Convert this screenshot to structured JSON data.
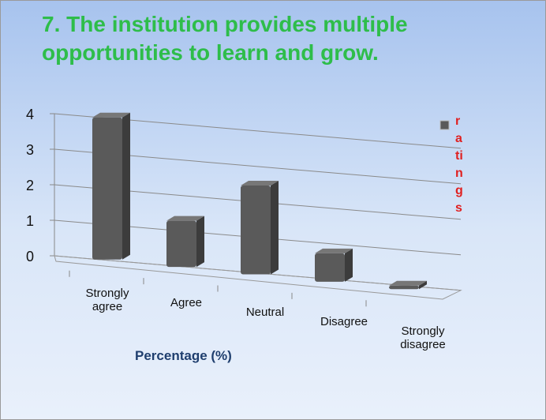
{
  "chart_data": {
    "type": "bar3d",
    "title": "7. The institution provides multiple opportunities to learn and grow.",
    "x_label": "Percentage (%)",
    "categories": [
      "Strongly agree",
      "Agree",
      "Neutral",
      "Disagree",
      "Strongly disagree"
    ],
    "series": [
      {
        "name": "ratings",
        "color": "#5a5a5a",
        "values": [
          4,
          1.3,
          2.5,
          0.8,
          0.1
        ]
      }
    ],
    "ylim": [
      0,
      4
    ],
    "yticks": [
      0,
      1,
      2,
      3,
      4
    ],
    "grid": true,
    "legend": "right"
  }
}
